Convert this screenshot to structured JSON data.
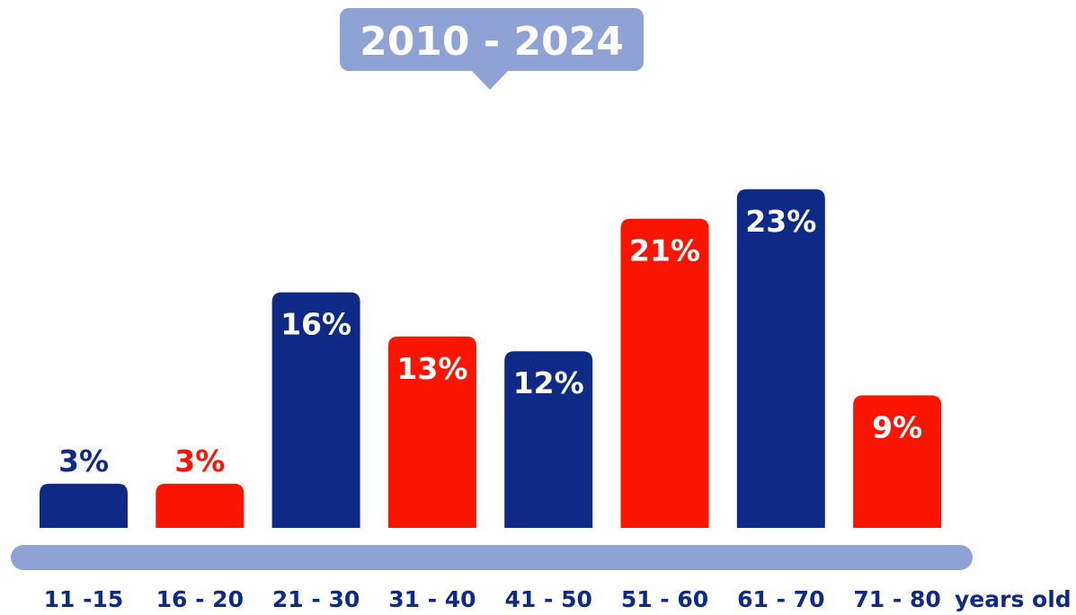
{
  "chart_data": {
    "type": "bar",
    "title": "2010 - 2024",
    "categories": [
      "11 -15",
      "16 - 20",
      "21 - 30",
      "31 - 40",
      "41 - 50",
      "51 - 60",
      "61 - 70",
      "71 - 80"
    ],
    "values": [
      3,
      3,
      16,
      13,
      12,
      21,
      23,
      9
    ],
    "value_labels": [
      "3%",
      "3%",
      "16%",
      "13%",
      "12%",
      "21%",
      "23%",
      "9%"
    ],
    "x_unit_label": "years old",
    "ylim": [
      0,
      25
    ],
    "grid": false,
    "bar_colors": [
      "#0f2a86",
      "#fb1500",
      "#0f2a86",
      "#fb1500",
      "#0f2a86",
      "#fb1500",
      "#0f2a86",
      "#fb1500"
    ],
    "colors": {
      "navy": "#0f2a86",
      "red": "#fb1500",
      "baseline": "#8fa2d6",
      "title_bubble": "#8fa2d6"
    }
  }
}
